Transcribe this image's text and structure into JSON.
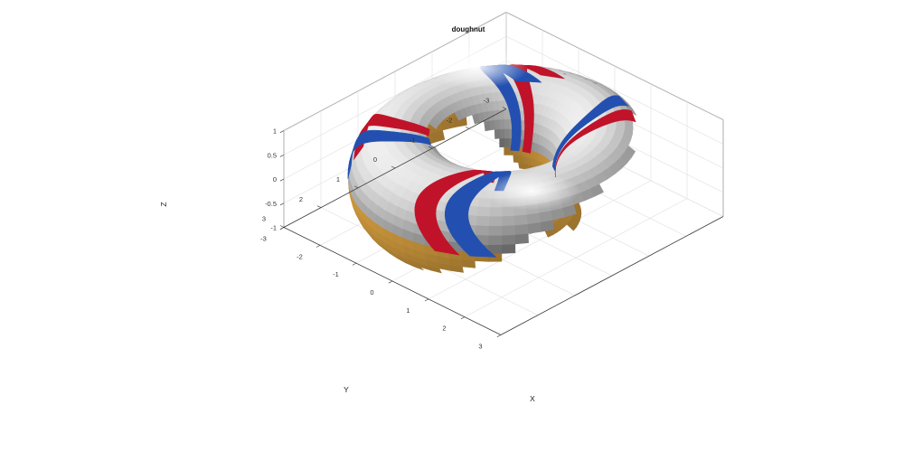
{
  "chart_data": {
    "type": "surface",
    "title": "doughnut",
    "xlabel": "X",
    "ylabel": "Y",
    "zlabel": "Z",
    "xlim": [
      -3,
      3
    ],
    "ylim": [
      -3,
      3
    ],
    "zlim": [
      -1,
      1
    ],
    "xticks": [
      "-3",
      "-2",
      "-1",
      "0",
      "1",
      "2",
      "3"
    ],
    "yticks": [
      "-3",
      "-2",
      "-1",
      "0",
      "1",
      "2",
      "3"
    ],
    "zticks": [
      "-1",
      "-0.5",
      "0",
      "0.5",
      "1"
    ],
    "grid": true,
    "surface": {
      "shape": "torus",
      "major_radius": 2,
      "minor_radius": 1,
      "base_color": "#c9c9c9",
      "underside_color": "#d8a040"
    },
    "bands": [
      {
        "name": "",
        "color": "#c0132a",
        "offset": 0.12
      },
      {
        "name": "",
        "color": "#2350b0",
        "offset": -0.12
      }
    ]
  }
}
